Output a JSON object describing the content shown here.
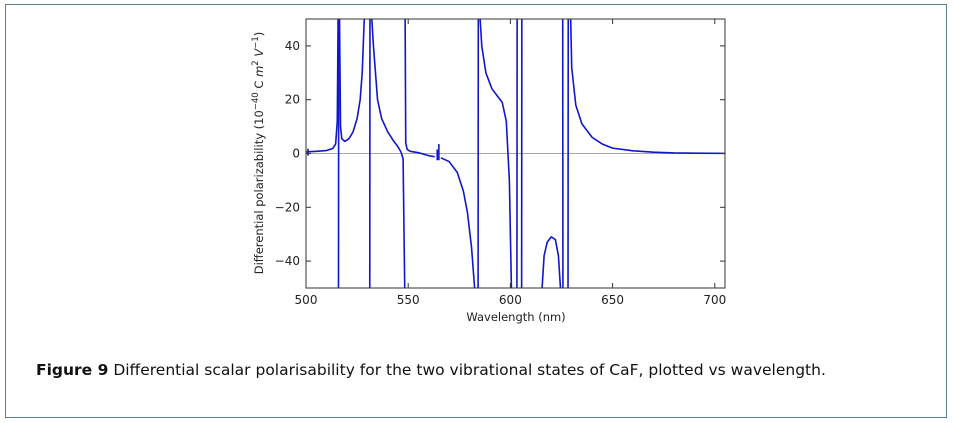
{
  "figure": {
    "caption_label": "Figure 9",
    "caption_text": "Differential scalar polarisability for the two vibrational states of CaF, plotted vs wavelength."
  },
  "chart_data": {
    "type": "line",
    "xlabel": "Wavelength (nm)",
    "ylabel_prefix": "Differential polarizability (10",
    "ylabel_exp1": "−40",
    "ylabel_mid1": " C ",
    "ylabel_m": "m",
    "ylabel_exp2": "2",
    "ylabel_mid2": " ",
    "ylabel_v": "V",
    "ylabel_exp3": "−1",
    "ylabel_suffix": ")",
    "xlim": [
      500,
      705
    ],
    "ylim": [
      -50,
      50
    ],
    "xticks": [
      "500",
      "550",
      "600",
      "650",
      "700"
    ],
    "yticks": [
      "−40",
      "−20",
      "0",
      "20",
      "40"
    ],
    "xtick_values": [
      500,
      550,
      600,
      650,
      700
    ],
    "ytick_values": [
      -40,
      -20,
      0,
      20,
      40
    ],
    "series_color": "#0f17c8",
    "zero_line_color": "#8a8a8a",
    "series": [
      {
        "segments": [
          [
            [
              500,
              0.6
            ],
            [
              505,
              0.8
            ],
            [
              510,
              1.1
            ],
            [
              513,
              1.8
            ],
            [
              514.5,
              3.5
            ],
            [
              515.3,
              12
            ],
            [
              515.7,
              50
            ]
          ],
          [
            [
              515.9,
              -50
            ],
            [
              516.0,
              50
            ]
          ],
          [
            [
              516.4,
              50
            ],
            [
              516.9,
              10
            ],
            [
              517.5,
              5.5
            ],
            [
              519,
              4.5
            ],
            [
              521,
              5.5
            ],
            [
              523,
              8
            ],
            [
              525,
              13
            ],
            [
              526.5,
              20
            ],
            [
              527.5,
              30
            ],
            [
              528.5,
              50
            ]
          ],
          [
            [
              531.2,
              -50
            ],
            [
              531.3,
              50
            ]
          ],
          [
            [
              532.2,
              50
            ],
            [
              533,
              40
            ],
            [
              535,
              20
            ],
            [
              537,
              13
            ],
            [
              540,
              8
            ],
            [
              543,
              4.5
            ],
            [
              545,
              2.5
            ],
            [
              546.5,
              0.5
            ],
            [
              547.5,
              -2
            ],
            [
              548.3,
              -50
            ]
          ],
          [
            [
              548.5,
              50
            ],
            [
              548.8,
              4
            ],
            [
              549.5,
              1.5
            ],
            [
              551,
              0.8
            ],
            [
              555,
              0.3
            ],
            [
              560,
              -0.8
            ],
            [
              563,
              -1.2
            ]
          ],
          [
            [
              566,
              -1.6
            ],
            [
              570,
              -3
            ],
            [
              574,
              -7
            ],
            [
              577,
              -14
            ],
            [
              579,
              -22
            ],
            [
              581,
              -35
            ],
            [
              582.5,
              -50
            ]
          ],
          [
            [
              584.2,
              -50
            ],
            [
              584.3,
              50
            ]
          ],
          [
            [
              585.2,
              50
            ],
            [
              586,
              40
            ],
            [
              588,
              30
            ],
            [
              591,
              24
            ],
            [
              594,
              21
            ],
            [
              596,
              19
            ],
            [
              598,
              12
            ],
            [
              599.5,
              -10
            ],
            [
              600.5,
              -50
            ]
          ],
          [
            [
              603.2,
              -50
            ],
            [
              603.3,
              50
            ]
          ],
          [
            [
              605.5,
              -50
            ],
            [
              605.6,
              50
            ]
          ],
          [
            [
              615.5,
              -50
            ],
            [
              616.5,
              -38
            ],
            [
              618,
              -33
            ],
            [
              620,
              -31
            ],
            [
              622,
              -32
            ],
            [
              623.5,
              -38
            ],
            [
              624.5,
              -50
            ]
          ],
          [
            [
              625.6,
              50
            ],
            [
              625.7,
              -50
            ]
          ],
          [
            [
              628.2,
              -50
            ],
            [
              628.3,
              50
            ]
          ],
          [
            [
              629.5,
              50
            ],
            [
              630,
              32
            ],
            [
              632,
              18
            ],
            [
              635,
              11
            ],
            [
              640,
              6
            ],
            [
              645,
              3.5
            ],
            [
              650,
              2
            ],
            [
              660,
              1
            ],
            [
              670,
              0.5
            ],
            [
              680,
              0.2
            ],
            [
              690,
              0.1
            ],
            [
              705,
              0.05
            ]
          ]
        ],
        "spikes": [
          {
            "x": 501,
            "y1": -0.8,
            "y2": 1.8
          },
          {
            "x": 564.2,
            "y1": -2.5,
            "y2": 1.5
          },
          {
            "x": 565.0,
            "y1": -2.5,
            "y2": 3.5
          }
        ]
      }
    ]
  }
}
